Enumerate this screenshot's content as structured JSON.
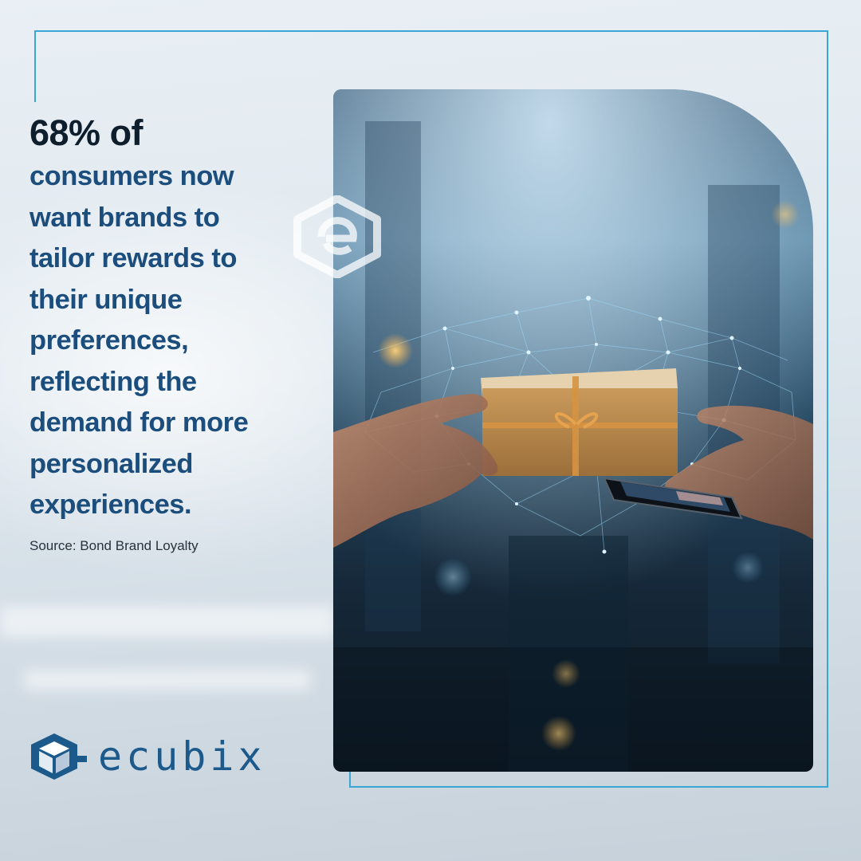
{
  "headline": {
    "lead": "68% of",
    "lines": [
      "consumers now",
      "want brands to",
      "tailor rewards to",
      "their unique",
      "preferences,",
      "reflecting the",
      "demand for more",
      "personalized",
      "experiences."
    ]
  },
  "source": "Source: Bond Brand Loyalty",
  "brand": {
    "name": "ecubix",
    "logo_icon": "cube-e-logo-icon",
    "watermark_icon": "cube-e-watermark-icon",
    "text_color": "#1d5a8c"
  },
  "photo": {
    "image": "hands-exchanging-gift-box-with-smartphone-over-glowing-network"
  },
  "colors": {
    "accent": "#3aa6d6",
    "headline_lead": "#0f1e2c",
    "headline_body": "#1b4d7d"
  }
}
